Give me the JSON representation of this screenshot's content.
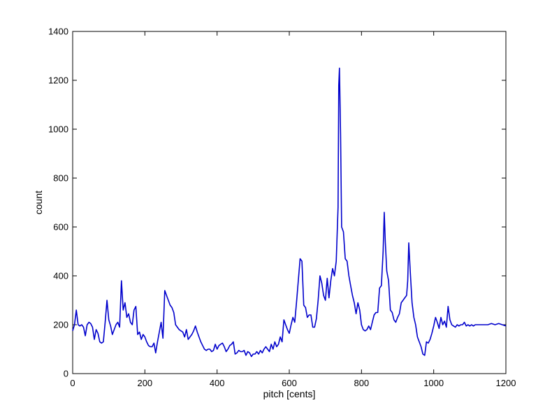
{
  "chart_data": {
    "type": "line",
    "xlabel": "pitch [cents]",
    "ylabel": "count",
    "xlim": [
      0,
      1200
    ],
    "ylim": [
      0,
      1400
    ],
    "xticks": [
      0,
      200,
      400,
      600,
      800,
      1000,
      1200
    ],
    "yticks": [
      0,
      200,
      400,
      600,
      800,
      1000,
      1200,
      1400
    ],
    "grid": false,
    "line_color": "#0000cc",
    "series": [
      {
        "points": [
          [
            0,
            175
          ],
          [
            5,
            200
          ],
          [
            10,
            260
          ],
          [
            15,
            200
          ],
          [
            20,
            195
          ],
          [
            25,
            200
          ],
          [
            30,
            190
          ],
          [
            35,
            155
          ],
          [
            40,
            200
          ],
          [
            45,
            210
          ],
          [
            50,
            205
          ],
          [
            55,
            190
          ],
          [
            60,
            140
          ],
          [
            65,
            180
          ],
          [
            70,
            165
          ],
          [
            75,
            130
          ],
          [
            80,
            125
          ],
          [
            85,
            130
          ],
          [
            90,
            210
          ],
          [
            95,
            300
          ],
          [
            100,
            220
          ],
          [
            105,
            195
          ],
          [
            110,
            160
          ],
          [
            115,
            180
          ],
          [
            120,
            200
          ],
          [
            125,
            210
          ],
          [
            130,
            190
          ],
          [
            135,
            380
          ],
          [
            140,
            260
          ],
          [
            145,
            290
          ],
          [
            150,
            230
          ],
          [
            155,
            245
          ],
          [
            160,
            210
          ],
          [
            165,
            200
          ],
          [
            170,
            260
          ],
          [
            175,
            275
          ],
          [
            180,
            160
          ],
          [
            185,
            170
          ],
          [
            190,
            140
          ],
          [
            195,
            160
          ],
          [
            200,
            150
          ],
          [
            205,
            130
          ],
          [
            210,
            115
          ],
          [
            215,
            110
          ],
          [
            220,
            110
          ],
          [
            225,
            125
          ],
          [
            230,
            85
          ],
          [
            235,
            130
          ],
          [
            240,
            170
          ],
          [
            245,
            210
          ],
          [
            250,
            145
          ],
          [
            255,
            340
          ],
          [
            260,
            320
          ],
          [
            265,
            300
          ],
          [
            270,
            280
          ],
          [
            275,
            270
          ],
          [
            280,
            250
          ],
          [
            285,
            200
          ],
          [
            290,
            190
          ],
          [
            295,
            180
          ],
          [
            300,
            175
          ],
          [
            305,
            170
          ],
          [
            310,
            150
          ],
          [
            315,
            180
          ],
          [
            320,
            140
          ],
          [
            325,
            150
          ],
          [
            330,
            160
          ],
          [
            335,
            175
          ],
          [
            340,
            195
          ],
          [
            345,
            170
          ],
          [
            350,
            150
          ],
          [
            355,
            130
          ],
          [
            360,
            115
          ],
          [
            365,
            100
          ],
          [
            370,
            95
          ],
          [
            375,
            100
          ],
          [
            380,
            100
          ],
          [
            385,
            90
          ],
          [
            390,
            95
          ],
          [
            395,
            120
          ],
          [
            400,
            100
          ],
          [
            405,
            115
          ],
          [
            410,
            120
          ],
          [
            415,
            125
          ],
          [
            420,
            110
          ],
          [
            425,
            90
          ],
          [
            430,
            100
          ],
          [
            435,
            115
          ],
          [
            440,
            120
          ],
          [
            445,
            130
          ],
          [
            450,
            80
          ],
          [
            455,
            85
          ],
          [
            460,
            95
          ],
          [
            465,
            90
          ],
          [
            470,
            90
          ],
          [
            475,
            95
          ],
          [
            480,
            75
          ],
          [
            485,
            90
          ],
          [
            490,
            85
          ],
          [
            495,
            70
          ],
          [
            500,
            80
          ],
          [
            505,
            80
          ],
          [
            510,
            90
          ],
          [
            515,
            80
          ],
          [
            520,
            95
          ],
          [
            525,
            85
          ],
          [
            530,
            100
          ],
          [
            535,
            110
          ],
          [
            540,
            100
          ],
          [
            545,
            90
          ],
          [
            550,
            120
          ],
          [
            555,
            100
          ],
          [
            560,
            130
          ],
          [
            565,
            110
          ],
          [
            570,
            120
          ],
          [
            575,
            150
          ],
          [
            580,
            130
          ],
          [
            585,
            220
          ],
          [
            590,
            200
          ],
          [
            595,
            180
          ],
          [
            600,
            165
          ],
          [
            605,
            200
          ],
          [
            610,
            230
          ],
          [
            615,
            210
          ],
          [
            620,
            290
          ],
          [
            625,
            380
          ],
          [
            630,
            470
          ],
          [
            635,
            460
          ],
          [
            640,
            280
          ],
          [
            645,
            270
          ],
          [
            650,
            230
          ],
          [
            655,
            240
          ],
          [
            660,
            240
          ],
          [
            665,
            190
          ],
          [
            670,
            190
          ],
          [
            675,
            225
          ],
          [
            680,
            300
          ],
          [
            685,
            400
          ],
          [
            690,
            370
          ],
          [
            695,
            320
          ],
          [
            700,
            300
          ],
          [
            705,
            390
          ],
          [
            710,
            310
          ],
          [
            715,
            380
          ],
          [
            720,
            430
          ],
          [
            725,
            400
          ],
          [
            730,
            460
          ],
          [
            735,
            680
          ],
          [
            737,
            1180
          ],
          [
            739,
            1250
          ],
          [
            742,
            980
          ],
          [
            745,
            600
          ],
          [
            750,
            580
          ],
          [
            755,
            470
          ],
          [
            760,
            460
          ],
          [
            765,
            400
          ],
          [
            770,
            360
          ],
          [
            775,
            320
          ],
          [
            780,
            290
          ],
          [
            785,
            245
          ],
          [
            790,
            290
          ],
          [
            795,
            260
          ],
          [
            800,
            200
          ],
          [
            805,
            180
          ],
          [
            810,
            175
          ],
          [
            815,
            180
          ],
          [
            820,
            195
          ],
          [
            825,
            180
          ],
          [
            830,
            210
          ],
          [
            835,
            240
          ],
          [
            840,
            250
          ],
          [
            845,
            250
          ],
          [
            850,
            350
          ],
          [
            855,
            360
          ],
          [
            860,
            500
          ],
          [
            863,
            660
          ],
          [
            866,
            540
          ],
          [
            870,
            420
          ],
          [
            875,
            380
          ],
          [
            880,
            260
          ],
          [
            885,
            250
          ],
          [
            890,
            220
          ],
          [
            895,
            210
          ],
          [
            900,
            230
          ],
          [
            905,
            245
          ],
          [
            910,
            290
          ],
          [
            915,
            300
          ],
          [
            920,
            310
          ],
          [
            925,
            320
          ],
          [
            928,
            380
          ],
          [
            931,
            535
          ],
          [
            935,
            420
          ],
          [
            940,
            290
          ],
          [
            945,
            230
          ],
          [
            950,
            200
          ],
          [
            955,
            150
          ],
          [
            960,
            130
          ],
          [
            965,
            110
          ],
          [
            970,
            80
          ],
          [
            975,
            75
          ],
          [
            980,
            130
          ],
          [
            985,
            125
          ],
          [
            990,
            140
          ],
          [
            995,
            165
          ],
          [
            1000,
            195
          ],
          [
            1005,
            230
          ],
          [
            1010,
            210
          ],
          [
            1015,
            185
          ],
          [
            1020,
            230
          ],
          [
            1025,
            200
          ],
          [
            1030,
            215
          ],
          [
            1035,
            190
          ],
          [
            1040,
            275
          ],
          [
            1045,
            220
          ],
          [
            1050,
            200
          ],
          [
            1055,
            195
          ],
          [
            1060,
            190
          ],
          [
            1065,
            200
          ],
          [
            1070,
            195
          ],
          [
            1075,
            200
          ],
          [
            1080,
            200
          ],
          [
            1085,
            210
          ],
          [
            1090,
            195
          ],
          [
            1095,
            200
          ],
          [
            1100,
            195
          ],
          [
            1105,
            200
          ],
          [
            1110,
            195
          ],
          [
            1115,
            200
          ],
          [
            1120,
            200
          ],
          [
            1130,
            200
          ],
          [
            1140,
            200
          ],
          [
            1150,
            200
          ],
          [
            1160,
            205
          ],
          [
            1170,
            200
          ],
          [
            1180,
            205
          ],
          [
            1190,
            200
          ],
          [
            1200,
            195
          ]
        ]
      }
    ]
  }
}
